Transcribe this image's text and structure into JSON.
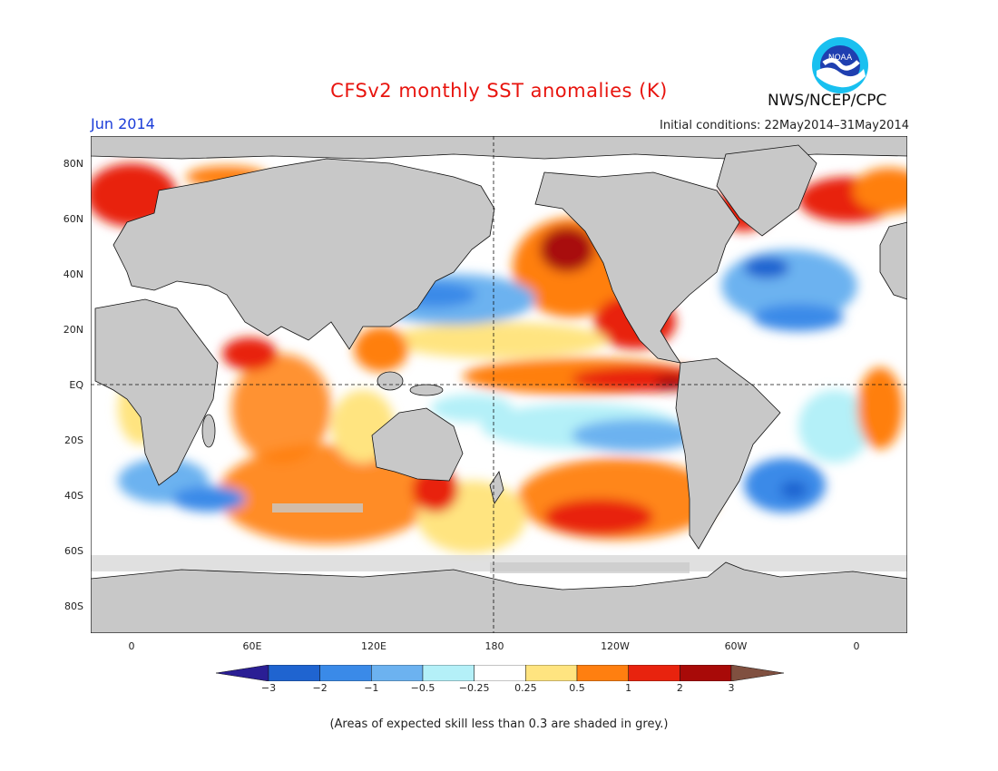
{
  "header": {
    "title": "CFSv2 monthly SST anomalies (K)",
    "month": "Jun 2014",
    "initial_conditions": "Initial conditions: 22May2014–31May2014",
    "organization": "NWS/NCEP/CPC",
    "logo_text": "NOAA"
  },
  "map": {
    "lat_labels": [
      "80N",
      "60N",
      "40N",
      "20N",
      "EQ",
      "20S",
      "40S",
      "60S",
      "80S"
    ],
    "lon_labels": [
      "0",
      "60E",
      "120E",
      "180",
      "120W",
      "60W",
      "0"
    ],
    "land_color": "#c8c8c8",
    "reference_lines": [
      "Equator",
      "Date line (180)"
    ]
  },
  "colorbar": {
    "ticks": [
      "−3",
      "−2",
      "−1",
      "−0.5",
      "−0.25",
      "0.25",
      "0.5",
      "1",
      "2",
      "3"
    ],
    "colors": [
      "#2a1e94",
      "#1f64d0",
      "#3a8ae8",
      "#6cb2f0",
      "#b4f0f8",
      "#ffffff",
      "#ffe480",
      "#ff7f10",
      "#e8230e",
      "#a80a08",
      "#805040"
    ]
  },
  "footnote": "(Areas of expected skill less than 0.3 are shaded in grey.)"
}
